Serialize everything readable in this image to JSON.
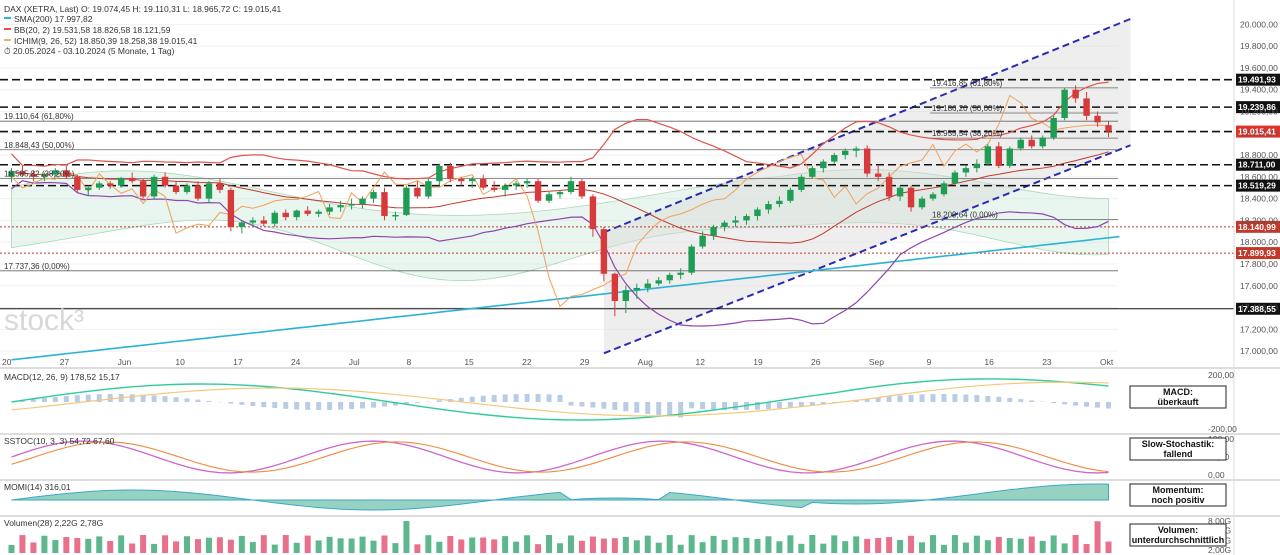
{
  "chart_data": {
    "type": "candlestick",
    "instrument": "DAX (XETRA, Last)",
    "ohlc_label": "O: 19.074,45  H: 19.110,31  L: 18.965,72  C: 19.015,41",
    "period": "20.05.2024 - 03.10.2024 (5 Monate, 1 Tag)",
    "legend": [
      {
        "name": "SMA(200)",
        "value": "17.997,82",
        "color": "#2bb3d6"
      },
      {
        "name": "BB(20, 2)",
        "value": "19.531,58  18.826,58  18.121,59",
        "color": "#e0524a"
      },
      {
        "name": "ICHIM(9, 26, 52)",
        "value": "18.850,39  18.258,38  19.015,41",
        "color": "#f0b060"
      }
    ],
    "x_labels": [
      "20",
      "27",
      "Jun",
      "10",
      "17",
      "24",
      "Jul",
      "8",
      "15",
      "22",
      "29",
      "Aug",
      "12",
      "19",
      "26",
      "Sep",
      "9",
      "16",
      "23",
      "Okt"
    ],
    "y_ticks": [
      17000,
      17200,
      17400,
      17600,
      17800,
      18000,
      18200,
      18400,
      18600,
      18800,
      19000,
      19200,
      19400,
      19600,
      19800,
      20000
    ],
    "y_tick_labels": [
      "17.000,00",
      "17.200,00",
      "17.400,00",
      "17.600,00",
      "17.800,00",
      "18.000,00",
      "18.200,00",
      "18.400,00",
      "18.600,00",
      "18.800,00",
      "19.000,00",
      "19.200,00",
      "19.400,00",
      "19.600,00",
      "19.800,00",
      "20.000,00"
    ],
    "ylim": [
      16900,
      20150
    ],
    "candles": [
      [
        18600,
        18680,
        18550,
        18650
      ],
      [
        18650,
        18700,
        18600,
        18620
      ],
      [
        18620,
        18660,
        18560,
        18600
      ],
      [
        18600,
        18640,
        18560,
        18620
      ],
      [
        18620,
        18680,
        18600,
        18660
      ],
      [
        18660,
        18700,
        18580,
        18600
      ],
      [
        18600,
        18620,
        18450,
        18480
      ],
      [
        18480,
        18520,
        18430,
        18500
      ],
      [
        18500,
        18560,
        18480,
        18540
      ],
      [
        18540,
        18560,
        18490,
        18520
      ],
      [
        18520,
        18600,
        18500,
        18590
      ],
      [
        18590,
        18640,
        18540,
        18560
      ],
      [
        18560,
        18580,
        18400,
        18420
      ],
      [
        18420,
        18620,
        18400,
        18600
      ],
      [
        18600,
        18640,
        18500,
        18520
      ],
      [
        18520,
        18560,
        18440,
        18460
      ],
      [
        18460,
        18540,
        18440,
        18520
      ],
      [
        18520,
        18560,
        18380,
        18400
      ],
      [
        18400,
        18560,
        18360,
        18540
      ],
      [
        18540,
        18580,
        18450,
        18480
      ],
      [
        18480,
        18500,
        18100,
        18140
      ],
      [
        18140,
        18200,
        18080,
        18180
      ],
      [
        18180,
        18230,
        18140,
        18200
      ],
      [
        18200,
        18240,
        18150,
        18170
      ],
      [
        18170,
        18290,
        18140,
        18270
      ],
      [
        18270,
        18300,
        18200,
        18230
      ],
      [
        18230,
        18300,
        18200,
        18290
      ],
      [
        18290,
        18330,
        18240,
        18260
      ],
      [
        18260,
        18300,
        18230,
        18280
      ],
      [
        18280,
        18350,
        18250,
        18320
      ],
      [
        18320,
        18380,
        18280,
        18340
      ],
      [
        18340,
        18400,
        18300,
        18350
      ],
      [
        18350,
        18420,
        18310,
        18400
      ],
      [
        18400,
        18480,
        18360,
        18460
      ],
      [
        18460,
        18500,
        18200,
        18240
      ],
      [
        18240,
        18280,
        18200,
        18250
      ],
      [
        18250,
        18520,
        18240,
        18500
      ],
      [
        18500,
        18560,
        18400,
        18420
      ],
      [
        18420,
        18580,
        18400,
        18560
      ],
      [
        18560,
        18720,
        18520,
        18700
      ],
      [
        18700,
        18730,
        18550,
        18580
      ],
      [
        18580,
        18600,
        18520,
        18560
      ],
      [
        18560,
        18600,
        18500,
        18580
      ],
      [
        18580,
        18620,
        18480,
        18500
      ],
      [
        18500,
        18560,
        18460,
        18480
      ],
      [
        18480,
        18540,
        18420,
        18520
      ],
      [
        18520,
        18560,
        18480,
        18540
      ],
      [
        18540,
        18580,
        18500,
        18560
      ],
      [
        18560,
        18580,
        18360,
        18380
      ],
      [
        18380,
        18460,
        18360,
        18440
      ],
      [
        18440,
        18480,
        18400,
        18460
      ],
      [
        18460,
        18600,
        18440,
        18560
      ],
      [
        18560,
        18580,
        18400,
        18420
      ],
      [
        18420,
        18440,
        18050,
        18120
      ],
      [
        18120,
        18140,
        17640,
        17710
      ],
      [
        17710,
        17720,
        17320,
        17460
      ],
      [
        17460,
        17600,
        17350,
        17560
      ],
      [
        17560,
        17620,
        17480,
        17580
      ],
      [
        17580,
        17660,
        17540,
        17620
      ],
      [
        17620,
        17680,
        17600,
        17650
      ],
      [
        17650,
        17720,
        17620,
        17700
      ],
      [
        17700,
        17760,
        17660,
        17720
      ],
      [
        17720,
        17980,
        17700,
        17960
      ],
      [
        17960,
        18100,
        17940,
        18060
      ],
      [
        18060,
        18160,
        18020,
        18140
      ],
      [
        18140,
        18200,
        18100,
        18180
      ],
      [
        18180,
        18240,
        18140,
        18200
      ],
      [
        18200,
        18260,
        18160,
        18240
      ],
      [
        18240,
        18320,
        18200,
        18300
      ],
      [
        18300,
        18380,
        18260,
        18350
      ],
      [
        18350,
        18420,
        18320,
        18380
      ],
      [
        18380,
        18500,
        18360,
        18480
      ],
      [
        18480,
        18620,
        18460,
        18600
      ],
      [
        18600,
        18700,
        18580,
        18680
      ],
      [
        18680,
        18760,
        18640,
        18740
      ],
      [
        18740,
        18820,
        18720,
        18800
      ],
      [
        18800,
        18860,
        18760,
        18840
      ],
      [
        18840,
        18880,
        18780,
        18860
      ],
      [
        18860,
        18890,
        18600,
        18630
      ],
      [
        18630,
        18700,
        18560,
        18600
      ],
      [
        18600,
        18640,
        18380,
        18420
      ],
      [
        18420,
        18520,
        18380,
        18500
      ],
      [
        18500,
        18520,
        18280,
        18320
      ],
      [
        18320,
        18420,
        18300,
        18400
      ],
      [
        18400,
        18460,
        18380,
        18440
      ],
      [
        18440,
        18560,
        18420,
        18540
      ],
      [
        18540,
        18660,
        18520,
        18640
      ],
      [
        18640,
        18700,
        18600,
        18680
      ],
      [
        18680,
        18760,
        18640,
        18720
      ],
      [
        18720,
        18900,
        18700,
        18880
      ],
      [
        18880,
        18920,
        18680,
        18700
      ],
      [
        18700,
        18880,
        18680,
        18860
      ],
      [
        18860,
        18960,
        18840,
        18940
      ],
      [
        18940,
        18980,
        18860,
        18880
      ],
      [
        18880,
        18980,
        18860,
        18960
      ],
      [
        18960,
        19160,
        18940,
        19140
      ],
      [
        19140,
        19420,
        19120,
        19400
      ],
      [
        19400,
        19440,
        19280,
        19320
      ],
      [
        19320,
        19380,
        19120,
        19160
      ],
      [
        19160,
        19200,
        19060,
        19100
      ],
      [
        19074,
        19110,
        18965,
        19015
      ]
    ],
    "levels": [
      {
        "value": 19491.93,
        "label": "19.491,93",
        "style": "dashed"
      },
      {
        "value": 19239.86,
        "label": "19.239,86",
        "style": "dashed"
      },
      {
        "value": 19015.41,
        "label": "19.015,41",
        "style": "dashed"
      },
      {
        "value": 18711.0,
        "label": "18.711,00",
        "style": "dashed"
      },
      {
        "value": 18519.29,
        "label": "18.519,29",
        "style": "dashed"
      },
      {
        "value": 18140.99,
        "label": "18.140,99",
        "style": "dotted"
      },
      {
        "value": 17899.93,
        "label": "17.899,93",
        "style": "dotted"
      },
      {
        "value": 17388.55,
        "label": "17.388,55",
        "style": "solid"
      }
    ],
    "fib_left": [
      {
        "value": 19110.64,
        "label": "19.110,64 (61,80%)"
      },
      {
        "value": 18848.43,
        "label": "18.848,43 (50,00%)"
      },
      {
        "value": 18585.82,
        "label": "18.585,82 (38,20%)"
      },
      {
        "value": 17737.36,
        "label": "17.737,36 (0,00%)"
      }
    ],
    "fib_right": [
      {
        "value": 19416.85,
        "label": "19.416,85 (61,80%)"
      },
      {
        "value": 19186.2,
        "label": "19.186,20 (50,00%)"
      },
      {
        "value": 18955.54,
        "label": "18.955,54 (38,20%)"
      },
      {
        "value": 18209.64,
        "label": "18.209,64 (0,00%)"
      }
    ],
    "panels": [
      {
        "name": "MACD(12, 26, 9)",
        "values": "178,52  15,17",
        "ticks": [
          "200,00",
          "0,00",
          "-200,00"
        ],
        "box": [
          "MACD:",
          "überkauft"
        ]
      },
      {
        "name": "SSTOC(10, 3, 3)",
        "values": "54,72  67,60",
        "ticks": [
          "100,00",
          "50,00",
          "0,00"
        ],
        "box": [
          "Slow-Stochastik:",
          "fallend"
        ]
      },
      {
        "name": "MOMI(14)",
        "values": "316,01",
        "ticks": [
          "0,00"
        ],
        "box": [
          "Momentum:",
          "noch positiv"
        ]
      },
      {
        "name": "Volumen(28)",
        "values": "2,22G  2,78G",
        "ticks": [
          "8,00G",
          "6,00G",
          "4,00G",
          "2,00G"
        ],
        "box": [
          "Volumen:",
          "unterdurchschnittlich"
        ]
      }
    ],
    "watermark": "stock³"
  }
}
